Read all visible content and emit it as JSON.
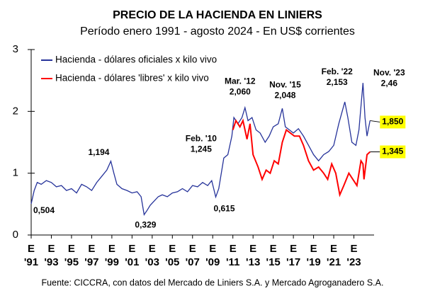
{
  "chart_data": {
    "type": "line",
    "title": "PRECIO DE LA HACIENDA EN LINIERS",
    "subtitle": "Período enero 1991 - agosto 2024 - En US$ corrientes",
    "source": "Fuente: CICCRA, con datos del Mercado de Liniers S.A. y Mercado Agroganadero S.A.",
    "xlim": [
      1991,
      2025
    ],
    "ylim": [
      0,
      3
    ],
    "yticks": [
      0,
      1,
      2,
      3
    ],
    "xticks": [
      {
        "value": 1991,
        "label": "E\n'91"
      },
      {
        "value": 1993,
        "label": "E\n'93"
      },
      {
        "value": 1995,
        "label": "E\n'95"
      },
      {
        "value": 1997,
        "label": "E\n'97"
      },
      {
        "value": 1999,
        "label": "E\n'99"
      },
      {
        "value": 2001,
        "label": "E\n'01"
      },
      {
        "value": 2003,
        "label": "E\n'03"
      },
      {
        "value": 2005,
        "label": "E\n'05"
      },
      {
        "value": 2007,
        "label": "E\n'07"
      },
      {
        "value": 2009,
        "label": "E\n'09"
      },
      {
        "value": 2011,
        "label": "E\n'11"
      },
      {
        "value": 2013,
        "label": "E\n'13"
      },
      {
        "value": 2015,
        "label": "E\n'15"
      },
      {
        "value": 2017,
        "label": "E\n'17"
      },
      {
        "value": 2019,
        "label": "E\n'19"
      },
      {
        "value": 2021,
        "label": "E\n'21"
      },
      {
        "value": 2023,
        "label": "E\n'23"
      }
    ],
    "legend": "upper-left",
    "series": [
      {
        "name": "Hacienda - dólares oficiales x kilo vivo",
        "color": "#26339a",
        "x": [
          1991,
          1991.3,
          1991.6,
          1992,
          1992.5,
          1993,
          1993.5,
          1994,
          1994.5,
          1995,
          1995.5,
          1996,
          1996.5,
          1997,
          1997.5,
          1998,
          1998.5,
          1998.9,
          1999.2,
          1999.5,
          2000,
          2000.5,
          2001,
          2001.5,
          2001.9,
          2002.2,
          2002.5,
          2002.8,
          2003.2,
          2003.6,
          2004,
          2004.5,
          2005,
          2005.5,
          2006,
          2006.5,
          2007,
          2007.5,
          2008,
          2008.5,
          2008.9,
          2009.3,
          2009.6,
          2010.1,
          2010.5,
          2010.9,
          2011.1,
          2011.5,
          2011.9,
          2012.2,
          2012.5,
          2012.9,
          2013.3,
          2013.7,
          2014.2,
          2014.6,
          2015,
          2015.5,
          2015.9,
          2016.2,
          2016.6,
          2017,
          2017.5,
          2018,
          2018.5,
          2019,
          2019.5,
          2020,
          2020.5,
          2021,
          2021.5,
          2022.1,
          2022.4,
          2022.8,
          2023.2,
          2023.5,
          2023.9,
          2024.1,
          2024.3,
          2024.6
        ],
        "values": [
          0.504,
          0.72,
          0.85,
          0.82,
          0.88,
          0.85,
          0.78,
          0.8,
          0.72,
          0.75,
          0.68,
          0.82,
          0.78,
          0.72,
          0.85,
          0.95,
          1.05,
          1.194,
          1.0,
          0.82,
          0.75,
          0.72,
          0.68,
          0.7,
          0.62,
          0.329,
          0.4,
          0.48,
          0.55,
          0.62,
          0.65,
          0.62,
          0.68,
          0.7,
          0.75,
          0.7,
          0.8,
          0.78,
          0.85,
          0.8,
          0.88,
          0.615,
          0.75,
          1.245,
          1.3,
          1.6,
          1.9,
          1.8,
          1.9,
          2.06,
          1.85,
          1.9,
          1.7,
          1.65,
          1.5,
          1.6,
          1.75,
          1.8,
          2.048,
          1.75,
          1.7,
          1.65,
          1.72,
          1.6,
          1.45,
          1.3,
          1.2,
          1.3,
          1.35,
          1.45,
          1.8,
          2.153,
          1.9,
          1.5,
          1.45,
          1.7,
          2.46,
          1.9,
          1.6,
          1.85
        ]
      },
      {
        "name": "Hacienda - dólares 'libres' x kilo vivo",
        "color": "#ff0000",
        "x": [
          2011,
          2011.3,
          2011.7,
          2012,
          2012.4,
          2012.7,
          2013,
          2013.5,
          2013.9,
          2014.3,
          2014.7,
          2015.1,
          2015.5,
          2015.9,
          2016.3,
          2016.7,
          2017.1,
          2017.6,
          2018,
          2018.5,
          2019,
          2019.5,
          2020,
          2020.4,
          2020.8,
          2021.2,
          2021.6,
          2022,
          2022.5,
          2022.9,
          2023.3,
          2023.7,
          2023.9,
          2024,
          2024.3,
          2024.6
        ],
        "values": [
          1.7,
          1.85,
          1.75,
          1.85,
          1.55,
          1.8,
          1.3,
          1.1,
          0.9,
          1.05,
          1.0,
          1.2,
          1.15,
          1.5,
          1.7,
          1.65,
          1.6,
          1.6,
          1.45,
          1.2,
          1.05,
          1.1,
          1.0,
          0.9,
          1.15,
          1.0,
          0.65,
          0.8,
          1.0,
          0.9,
          0.8,
          1.2,
          1.15,
          0.9,
          1.3,
          1.345
        ]
      }
    ],
    "annotations": [
      {
        "x": 1991,
        "y": 0.504,
        "label": "0,504"
      },
      {
        "x": 1998.9,
        "y": 1.194,
        "label": "1,194"
      },
      {
        "x": 2002.2,
        "y": 0.329,
        "label": "0,329"
      },
      {
        "x": 2010.1,
        "y": 1.245,
        "date": "Feb. '10",
        "label": "1,245"
      },
      {
        "x": 2009.3,
        "y": 0.615,
        "label": "0,615"
      },
      {
        "x": 2012.2,
        "y": 2.06,
        "date": "Mar. '12",
        "label": "2,060"
      },
      {
        "x": 2015.9,
        "y": 2.048,
        "date": "Nov. '15",
        "label": "2,048"
      },
      {
        "x": 2022.1,
        "y": 2.153,
        "date": "Feb. '22",
        "label": "2,153"
      },
      {
        "x": 2023.9,
        "y": 2.46,
        "date": "Nov. '23",
        "label": "2,46"
      },
      {
        "x": 2024.6,
        "y": 1.85,
        "label": "1,850",
        "boxed": true
      },
      {
        "x": 2024.6,
        "y": 1.345,
        "label": "1,345",
        "boxed": true
      }
    ]
  }
}
